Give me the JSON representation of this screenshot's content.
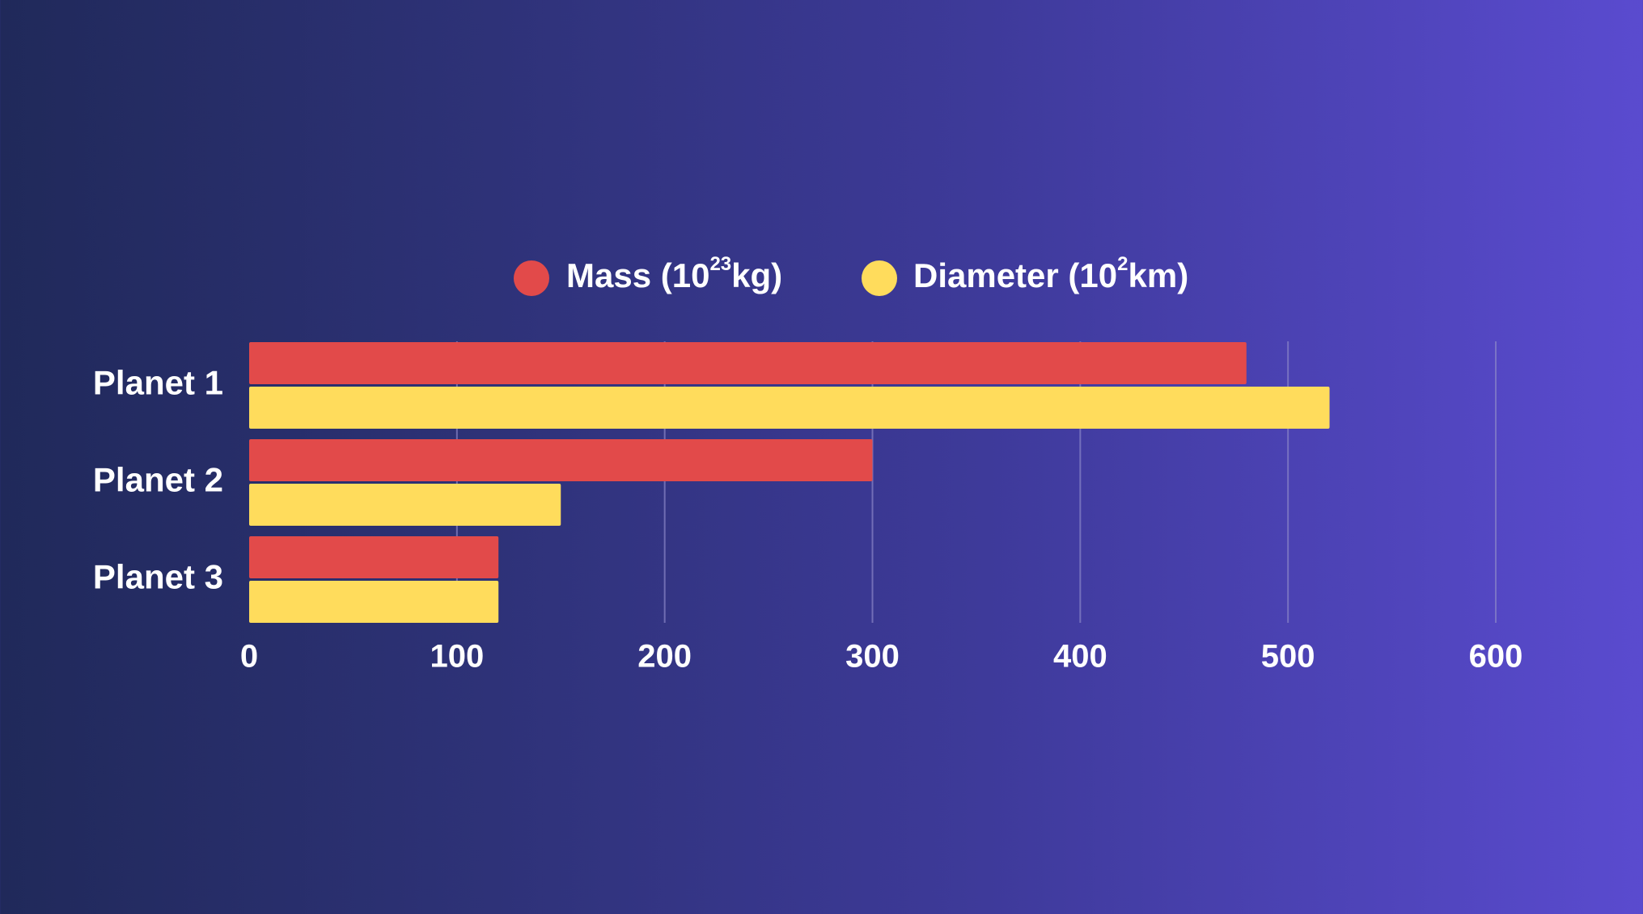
{
  "chart_data": {
    "type": "bar",
    "orientation": "horizontal",
    "categories": [
      "Planet 1",
      "Planet 2",
      "Planet 3"
    ],
    "series": [
      {
        "name": "Mass (10²³kg)",
        "name_base": "Mass (10",
        "name_sup": "23",
        "name_tail": "kg)",
        "color": "#e24a4a",
        "values": [
          480,
          300,
          120
        ]
      },
      {
        "name": "Diameter (10²km)",
        "name_base": "Diameter (10",
        "name_sup": "2",
        "name_tail": "km)",
        "color": "#ffdc5c",
        "values": [
          520,
          150,
          120
        ]
      }
    ],
    "x_ticks": [
      "0",
      "100",
      "200",
      "300",
      "400",
      "500",
      "600"
    ],
    "xlim": [
      0,
      600
    ],
    "grid": "vertical",
    "legend_position": "top-center",
    "title": "",
    "xlabel": "",
    "ylabel": ""
  },
  "colors": {
    "background_start": "#20295a",
    "background_end": "#5a4bcf",
    "gridline": "#8a86c8",
    "text": "#ffffff"
  }
}
